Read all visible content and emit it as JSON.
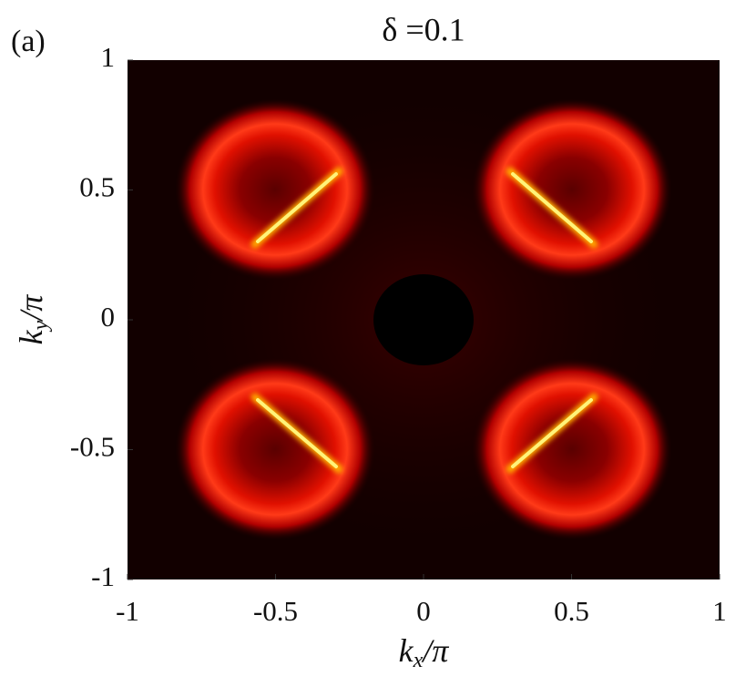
{
  "chart_data": {
    "type": "heatmap",
    "panel_label": "(a)",
    "title": "δ =0.1",
    "xlabel": {
      "base": "k",
      "sub": "x",
      "rest": "/π"
    },
    "ylabel": {
      "base": "k",
      "sub": "y",
      "rest": "/π"
    },
    "xlim": [
      -1,
      1
    ],
    "ylim": [
      -1,
      1
    ],
    "xticks": [
      -1,
      -0.5,
      0,
      0.5,
      1
    ],
    "yticks": [
      -1,
      -0.5,
      0,
      0.5,
      1
    ]
  }
}
